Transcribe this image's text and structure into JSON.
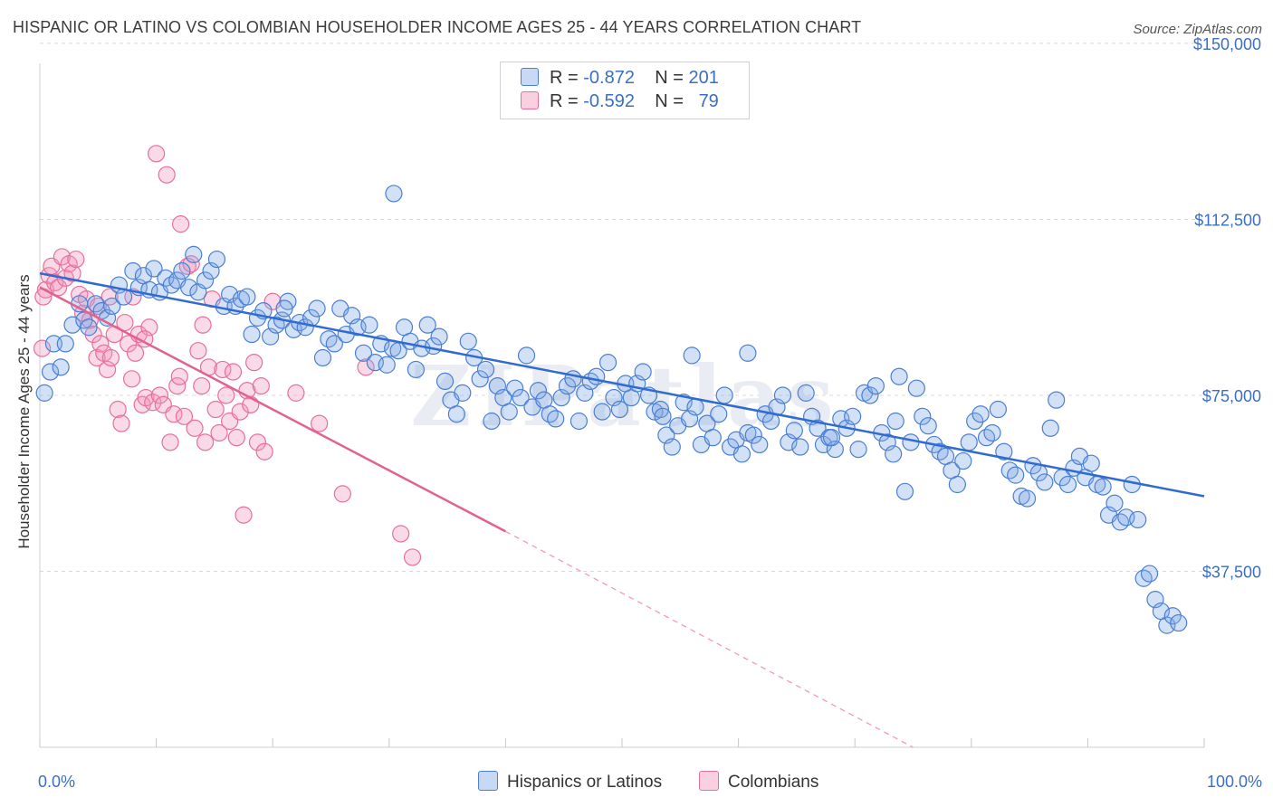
{
  "header": {
    "title": "HISPANIC OR LATINO VS COLOMBIAN HOUSEHOLDER INCOME AGES 25 - 44 YEARS CORRELATION CHART",
    "source": "Source: ZipAtlas.com"
  },
  "colors": {
    "blue": "#4a7fd4",
    "blue_fill": "rgba(130,170,230,0.35)",
    "pink": "#e86f9c",
    "pink_fill": "rgba(240,150,185,0.35)",
    "grid": "#d9d9d9",
    "axis_text": "#3a6fc4"
  },
  "legend": {
    "rows": [
      {
        "r_label": "R =",
        "r_value": "-0.872",
        "n_label": "N =",
        "n_value": "201"
      },
      {
        "r_label": "R =",
        "r_value": "-0.592",
        "n_label": "N =",
        "n_value": "79"
      }
    ],
    "bottom": [
      "Hispanics or Latinos",
      "Colombians"
    ]
  },
  "chart_data": {
    "type": "scatter",
    "xlabel": "",
    "ylabel": "Householder Income Ages 25 - 44 years",
    "xlim": [
      0,
      100
    ],
    "ylim": [
      0,
      155000
    ],
    "x_tick_labels": [
      "0.0%",
      "100.0%"
    ],
    "y_ticks": [
      37500,
      75000,
      112500,
      150000
    ],
    "y_tick_labels": [
      "$37,500",
      "$75,000",
      "$112,500",
      "$150,000"
    ],
    "grid": "horizontal dashed",
    "watermark": "ZIPatlas",
    "series": [
      {
        "name": "Hispanics or Latinos",
        "trend": {
          "x": [
            0,
            100
          ],
          "y": [
            101000,
            53500
          ]
        },
        "points": [
          [
            0.4,
            75500
          ],
          [
            0.9,
            80000
          ],
          [
            1.2,
            86000
          ],
          [
            1.8,
            81000
          ],
          [
            2.2,
            86000
          ],
          [
            2.8,
            90000
          ],
          [
            3.4,
            94500
          ],
          [
            3.8,
            91000
          ],
          [
            4.2,
            89500
          ],
          [
            4.8,
            94500
          ],
          [
            5.3,
            93000
          ],
          [
            5.8,
            91500
          ],
          [
            6.2,
            94000
          ],
          [
            6.8,
            98500
          ],
          [
            7.2,
            96000
          ],
          [
            8.0,
            101500
          ],
          [
            8.5,
            98000
          ],
          [
            8.9,
            100500
          ],
          [
            9.4,
            97500
          ],
          [
            9.8,
            102000
          ],
          [
            10.3,
            97000
          ],
          [
            10.8,
            100000
          ],
          [
            11.3,
            98500
          ],
          [
            11.8,
            99500
          ],
          [
            12.2,
            101500
          ],
          [
            12.8,
            98000
          ],
          [
            13.2,
            105000
          ],
          [
            13.6,
            97000
          ],
          [
            14.2,
            99500
          ],
          [
            14.7,
            101500
          ],
          [
            15.2,
            104000
          ],
          [
            15.8,
            94000
          ],
          [
            16.3,
            96500
          ],
          [
            16.8,
            94000
          ],
          [
            17.3,
            95500
          ],
          [
            17.8,
            96000
          ],
          [
            18.2,
            88000
          ],
          [
            18.7,
            91500
          ],
          [
            19.2,
            93000
          ],
          [
            19.8,
            87500
          ],
          [
            20.3,
            90000
          ],
          [
            20.8,
            91000
          ],
          [
            21.3,
            95000
          ],
          [
            21.8,
            89000
          ],
          [
            22.3,
            90500
          ],
          [
            22.8,
            89500
          ],
          [
            23.3,
            91500
          ],
          [
            23.8,
            93500
          ],
          [
            24.3,
            83000
          ],
          [
            24.8,
            87000
          ],
          [
            25.3,
            86000
          ],
          [
            25.8,
            93500
          ],
          [
            26.3,
            88000
          ],
          [
            26.8,
            92000
          ],
          [
            27.3,
            89500
          ],
          [
            27.8,
            84000
          ],
          [
            28.3,
            90000
          ],
          [
            28.8,
            82000
          ],
          [
            29.3,
            86000
          ],
          [
            29.8,
            81500
          ],
          [
            30.3,
            85000
          ],
          [
            30.8,
            84500
          ],
          [
            31.3,
            89500
          ],
          [
            31.8,
            86500
          ],
          [
            32.3,
            80500
          ],
          [
            32.8,
            85000
          ],
          [
            33.3,
            90000
          ],
          [
            33.8,
            85500
          ],
          [
            34.3,
            87500
          ],
          [
            34.8,
            78000
          ],
          [
            35.3,
            74000
          ],
          [
            35.8,
            71000
          ],
          [
            36.3,
            75500
          ],
          [
            36.8,
            86500
          ],
          [
            37.3,
            83000
          ],
          [
            37.8,
            78500
          ],
          [
            38.3,
            80500
          ],
          [
            38.8,
            69500
          ],
          [
            39.3,
            77000
          ],
          [
            39.8,
            74500
          ],
          [
            40.3,
            71500
          ],
          [
            40.8,
            76500
          ],
          [
            41.3,
            74500
          ],
          [
            41.8,
            83500
          ],
          [
            42.3,
            72500
          ],
          [
            42.8,
            76000
          ],
          [
            43.3,
            74000
          ],
          [
            43.8,
            71000
          ],
          [
            44.3,
            70000
          ],
          [
            44.8,
            74500
          ],
          [
            45.3,
            77000
          ],
          [
            45.8,
            78500
          ],
          [
            46.3,
            69500
          ],
          [
            46.8,
            75500
          ],
          [
            47.3,
            78000
          ],
          [
            47.8,
            79000
          ],
          [
            48.3,
            71500
          ],
          [
            48.8,
            82000
          ],
          [
            49.3,
            74500
          ],
          [
            49.8,
            72000
          ],
          [
            50.3,
            77500
          ],
          [
            50.8,
            74500
          ],
          [
            51.3,
            77500
          ],
          [
            51.8,
            80000
          ],
          [
            52.3,
            75000
          ],
          [
            52.8,
            71500
          ],
          [
            53.3,
            72000
          ],
          [
            53.8,
            66500
          ],
          [
            54.3,
            64000
          ],
          [
            54.8,
            68500
          ],
          [
            55.3,
            73500
          ],
          [
            55.8,
            70000
          ],
          [
            56.3,
            72500
          ],
          [
            56.8,
            64500
          ],
          [
            57.3,
            69000
          ],
          [
            57.8,
            66000
          ],
          [
            58.3,
            71000
          ],
          [
            58.8,
            75000
          ],
          [
            59.3,
            64000
          ],
          [
            59.8,
            65500
          ],
          [
            60.3,
            62500
          ],
          [
            60.8,
            67000
          ],
          [
            61.3,
            66500
          ],
          [
            61.8,
            64500
          ],
          [
            62.3,
            71000
          ],
          [
            62.8,
            69500
          ],
          [
            63.3,
            72500
          ],
          [
            63.8,
            75000
          ],
          [
            64.3,
            65000
          ],
          [
            64.8,
            67500
          ],
          [
            65.3,
            64000
          ],
          [
            65.8,
            75500
          ],
          [
            66.3,
            70500
          ],
          [
            66.8,
            68000
          ],
          [
            67.3,
            64500
          ],
          [
            67.8,
            66000
          ],
          [
            68.3,
            63500
          ],
          [
            68.8,
            70000
          ],
          [
            69.3,
            68000
          ],
          [
            69.8,
            70500
          ],
          [
            70.3,
            63500
          ],
          [
            70.8,
            75500
          ],
          [
            71.3,
            75000
          ],
          [
            71.8,
            77000
          ],
          [
            72.3,
            67000
          ],
          [
            72.8,
            65000
          ],
          [
            73.3,
            62500
          ],
          [
            73.8,
            79000
          ],
          [
            74.3,
            54500
          ],
          [
            74.8,
            65000
          ],
          [
            75.3,
            76500
          ],
          [
            75.8,
            70500
          ],
          [
            76.3,
            68500
          ],
          [
            76.8,
            64500
          ],
          [
            77.3,
            63000
          ],
          [
            77.8,
            62000
          ],
          [
            78.3,
            59000
          ],
          [
            78.8,
            56000
          ],
          [
            79.3,
            61000
          ],
          [
            79.8,
            65000
          ],
          [
            80.3,
            69500
          ],
          [
            80.8,
            71000
          ],
          [
            81.3,
            66000
          ],
          [
            81.8,
            67000
          ],
          [
            82.3,
            72000
          ],
          [
            82.8,
            63000
          ],
          [
            83.3,
            59000
          ],
          [
            83.8,
            58000
          ],
          [
            84.3,
            53500
          ],
          [
            84.8,
            53000
          ],
          [
            85.3,
            60000
          ],
          [
            85.8,
            58500
          ],
          [
            86.3,
            56500
          ],
          [
            86.8,
            68000
          ],
          [
            87.3,
            74000
          ],
          [
            87.8,
            57500
          ],
          [
            88.3,
            56000
          ],
          [
            88.8,
            59500
          ],
          [
            89.3,
            62000
          ],
          [
            89.8,
            57500
          ],
          [
            90.3,
            60500
          ],
          [
            90.8,
            56000
          ],
          [
            91.3,
            55500
          ],
          [
            91.8,
            49500
          ],
          [
            92.3,
            52000
          ],
          [
            92.8,
            48000
          ],
          [
            93.3,
            49000
          ],
          [
            93.8,
            56000
          ],
          [
            94.3,
            48500
          ],
          [
            94.8,
            36000
          ],
          [
            95.3,
            37000
          ],
          [
            95.8,
            31500
          ],
          [
            96.3,
            29000
          ],
          [
            96.8,
            26000
          ],
          [
            97.3,
            28000
          ],
          [
            97.8,
            26500
          ],
          [
            21.0,
            93500
          ],
          [
            30.4,
            118000
          ],
          [
            53.5,
            70500
          ],
          [
            56.0,
            83500
          ],
          [
            60.8,
            84000
          ],
          [
            68.0,
            66000
          ],
          [
            73.5,
            69500
          ]
        ]
      },
      {
        "name": "Colombians",
        "trend": {
          "x": [
            0,
            40
          ],
          "y": [
            98000,
            46000
          ]
        },
        "trend_extension": {
          "x": [
            40,
            75
          ],
          "y": [
            46000,
            0
          ]
        },
        "points": [
          [
            0.2,
            85000
          ],
          [
            0.3,
            96000
          ],
          [
            0.5,
            97500
          ],
          [
            0.8,
            100500
          ],
          [
            1.0,
            102500
          ],
          [
            1.3,
            99000
          ],
          [
            1.6,
            98000
          ],
          [
            1.9,
            104500
          ],
          [
            2.2,
            100000
          ],
          [
            2.5,
            103000
          ],
          [
            2.8,
            101000
          ],
          [
            3.1,
            104000
          ],
          [
            3.4,
            96500
          ],
          [
            3.7,
            92500
          ],
          [
            4.0,
            95500
          ],
          [
            4.3,
            91000
          ],
          [
            4.6,
            88000
          ],
          [
            4.9,
            83000
          ],
          [
            5.2,
            86000
          ],
          [
            5.5,
            84000
          ],
          [
            5.8,
            80500
          ],
          [
            6.1,
            83000
          ],
          [
            6.4,
            88000
          ],
          [
            6.7,
            72000
          ],
          [
            7.0,
            69000
          ],
          [
            7.3,
            90500
          ],
          [
            7.6,
            86000
          ],
          [
            7.9,
            78500
          ],
          [
            8.2,
            84000
          ],
          [
            8.5,
            88000
          ],
          [
            8.8,
            73000
          ],
          [
            9.1,
            74500
          ],
          [
            9.4,
            89500
          ],
          [
            9.7,
            73500
          ],
          [
            10.0,
            126500
          ],
          [
            10.3,
            75000
          ],
          [
            10.6,
            73000
          ],
          [
            10.9,
            122000
          ],
          [
            11.2,
            65000
          ],
          [
            11.5,
            71000
          ],
          [
            11.8,
            77000
          ],
          [
            12.1,
            111500
          ],
          [
            12.4,
            70500
          ],
          [
            12.7,
            102500
          ],
          [
            13.0,
            103000
          ],
          [
            13.3,
            68000
          ],
          [
            13.6,
            84500
          ],
          [
            13.9,
            77000
          ],
          [
            14.2,
            65000
          ],
          [
            14.5,
            81000
          ],
          [
            14.8,
            95500
          ],
          [
            15.1,
            72000
          ],
          [
            15.4,
            67000
          ],
          [
            15.7,
            80500
          ],
          [
            16.0,
            75000
          ],
          [
            16.3,
            69500
          ],
          [
            16.6,
            80000
          ],
          [
            16.9,
            66000
          ],
          [
            17.2,
            71500
          ],
          [
            17.5,
            49500
          ],
          [
            17.8,
            76000
          ],
          [
            18.1,
            73000
          ],
          [
            18.4,
            82000
          ],
          [
            18.7,
            65000
          ],
          [
            19.0,
            77000
          ],
          [
            19.3,
            63000
          ],
          [
            20.0,
            95000
          ],
          [
            22.0,
            75500
          ],
          [
            24.0,
            69000
          ],
          [
            26.0,
            54000
          ],
          [
            28.0,
            81000
          ],
          [
            31.0,
            45500
          ],
          [
            32.0,
            40500
          ],
          [
            5.0,
            94000
          ],
          [
            6.0,
            96000
          ],
          [
            8.0,
            96000
          ],
          [
            9.0,
            87000
          ],
          [
            12.0,
            79000
          ],
          [
            14.0,
            90000
          ]
        ]
      }
    ]
  }
}
